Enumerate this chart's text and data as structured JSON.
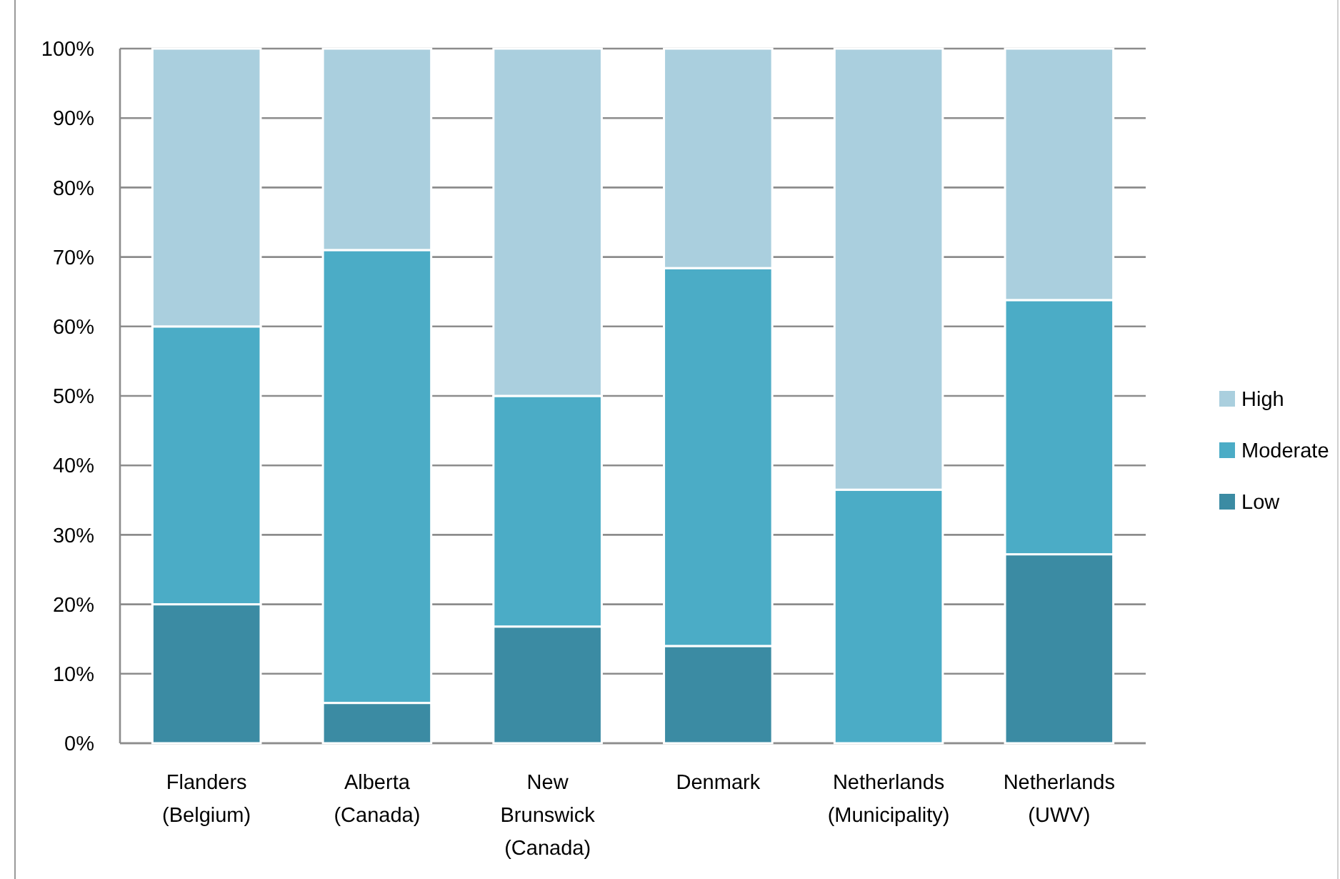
{
  "chart_data": {
    "type": "bar",
    "stacked": true,
    "categories": [
      "Flanders (Belgium)",
      "Alberta (Canada)",
      "New Brunswick (Canada)",
      "Denmark",
      "Netherlands (Municipality)",
      "Netherlands (UWV)"
    ],
    "series": [
      {
        "name": "Low",
        "color": "#3b8ba3",
        "values": [
          20,
          5.8,
          16.8,
          14,
          0,
          27.2
        ]
      },
      {
        "name": "Moderate",
        "color": "#4bacc6",
        "values": [
          40,
          65.2,
          33.2,
          54.4,
          36.5,
          36.6
        ]
      },
      {
        "name": "High",
        "color": "#aacfde",
        "values": [
          40,
          29,
          50,
          31.6,
          63.5,
          36.2
        ]
      }
    ],
    "ylim": [
      0,
      100
    ],
    "yticks": [
      {
        "value": 0,
        "label": "0%"
      },
      {
        "value": 10,
        "label": "10%"
      },
      {
        "value": 20,
        "label": "20%"
      },
      {
        "value": 30,
        "label": "30%"
      },
      {
        "value": 40,
        "label": "40%"
      },
      {
        "value": 50,
        "label": "50%"
      },
      {
        "value": 60,
        "label": "60%"
      },
      {
        "value": 70,
        "label": "70%"
      },
      {
        "value": 80,
        "label": "80%"
      },
      {
        "value": 90,
        "label": "90%"
      },
      {
        "value": 100,
        "label": "100%"
      }
    ],
    "grid": "y",
    "legend": "right"
  }
}
